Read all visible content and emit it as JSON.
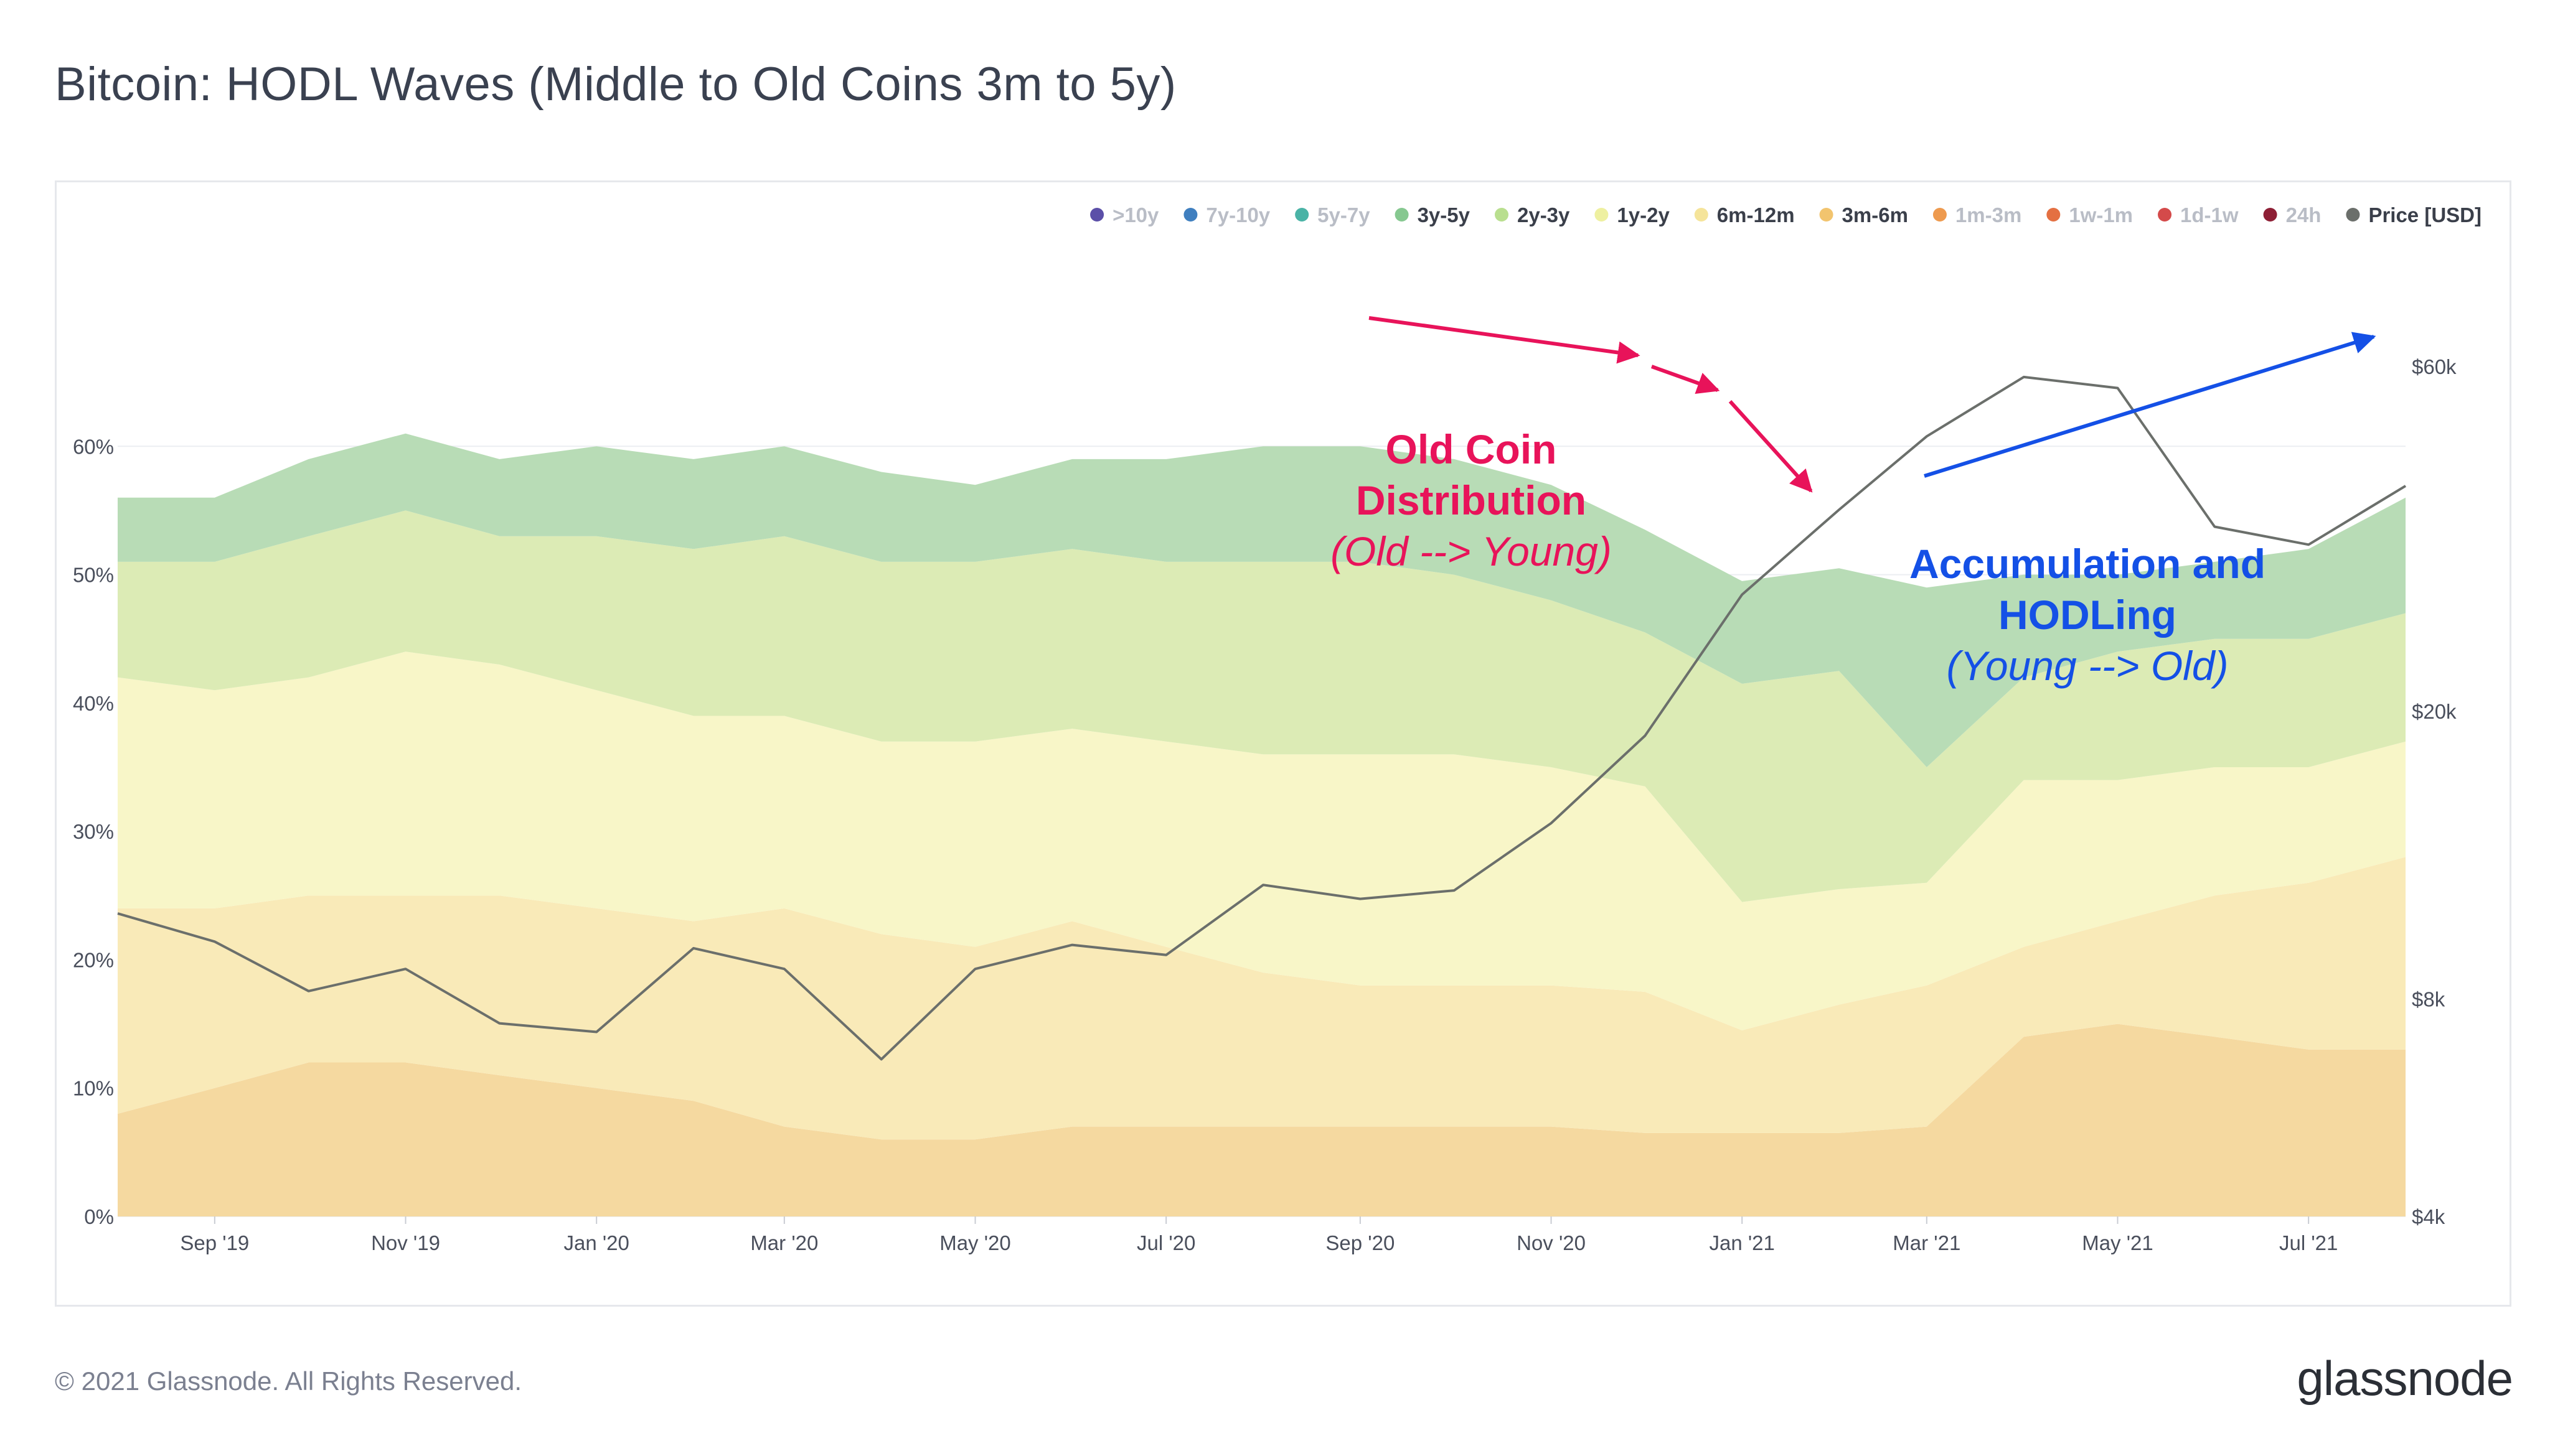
{
  "title": "Bitcoin: HODL Waves (Middle to Old Coins 3m to 5y)",
  "footer": "© 2021 Glassnode. All Rights Reserved.",
  "brand": "glassnode",
  "watermark": "glassnode",
  "chart_data": {
    "type": "area",
    "stacked": true,
    "x": [
      "2019-08-01",
      "2019-09-01",
      "2019-10-01",
      "2019-11-01",
      "2019-12-01",
      "2020-01-01",
      "2020-02-01",
      "2020-03-01",
      "2020-04-01",
      "2020-05-01",
      "2020-06-01",
      "2020-07-01",
      "2020-08-01",
      "2020-09-01",
      "2020-10-01",
      "2020-11-01",
      "2020-12-01",
      "2021-01-01",
      "2021-02-01",
      "2021-03-01",
      "2021-04-01",
      "2021-05-01",
      "2021-06-01",
      "2021-07-01",
      "2021-08-01"
    ],
    "x_ticks": [
      "Sep '19",
      "Nov '19",
      "Jan '20",
      "Mar '20",
      "May '20",
      "Jul '20",
      "Sep '20",
      "Nov '20",
      "Jan '21",
      "Mar '21",
      "May '21",
      "Jul '21"
    ],
    "y_left_ticks": [
      "0%",
      "10%",
      "20%",
      "30%",
      "40%",
      "50%",
      "60%"
    ],
    "ylim_left": [
      0,
      70
    ],
    "y_right_ticks": [
      "$4k",
      "$8k",
      "$20k",
      "$60k"
    ],
    "y_right_scale": "log",
    "ylim_right": [
      4000,
      70000
    ],
    "series": [
      {
        "name": "3m-6m",
        "color": "#f5d9a0",
        "values": [
          8,
          10,
          12,
          12,
          11,
          10,
          9,
          7,
          6,
          6,
          7,
          7,
          7,
          7,
          7,
          7,
          6.5,
          6.5,
          6.5,
          7,
          14,
          15,
          14,
          13,
          13
        ]
      },
      {
        "name": "6m-12m",
        "color": "#f9eab8",
        "values": [
          16,
          14,
          13,
          13,
          14,
          14,
          14,
          17,
          16,
          15,
          16,
          14,
          12,
          11,
          11,
          11,
          11,
          8,
          10,
          11,
          7,
          8,
          11,
          13,
          15
        ]
      },
      {
        "name": "1y-2y",
        "color": "#f8f6c8",
        "values": [
          18,
          17,
          17,
          19,
          18,
          17,
          16,
          15,
          15,
          16,
          15,
          16,
          17,
          18,
          18,
          17,
          16,
          10,
          9,
          8,
          13,
          11,
          10,
          9,
          9
        ]
      },
      {
        "name": "2y-3y",
        "color": "#dcebb5",
        "values": [
          9,
          10,
          11,
          11,
          10,
          12,
          13,
          14,
          14,
          14,
          14,
          14,
          15,
          15,
          14,
          13,
          12,
          17,
          17,
          9,
          8,
          10,
          10,
          10,
          10
        ]
      },
      {
        "name": "3y-5y",
        "color": "#b8dcb6",
        "values": [
          5,
          5,
          6,
          6,
          6,
          7,
          7,
          7,
          7,
          6,
          7,
          8,
          9,
          9,
          9,
          9,
          8,
          8,
          8,
          14,
          8,
          6,
          6,
          7,
          9
        ]
      }
    ],
    "price": {
      "name": "Price [USD]",
      "color": "#6b6f6b",
      "values": [
        10500,
        9600,
        8200,
        8800,
        7400,
        7200,
        9400,
        8800,
        6600,
        8800,
        9500,
        9200,
        11500,
        11000,
        11300,
        14000,
        18500,
        29000,
        38000,
        48000,
        58000,
        56000,
        36000,
        34000,
        41000
      ]
    },
    "legend": [
      {
        "label": ">10y",
        "color": "#5b4fa8",
        "active": false
      },
      {
        "label": "7y-10y",
        "color": "#3f7fbf",
        "active": false
      },
      {
        "label": "5y-7y",
        "color": "#4ab3a6",
        "active": false
      },
      {
        "label": "3y-5y",
        "color": "#86c890",
        "active": true
      },
      {
        "label": "2y-3y",
        "color": "#b9df8f",
        "active": true
      },
      {
        "label": "1y-2y",
        "color": "#eef0a0",
        "active": true
      },
      {
        "label": "6m-12m",
        "color": "#f5e49a",
        "active": true
      },
      {
        "label": "3m-6m",
        "color": "#f2c46e",
        "active": true
      },
      {
        "label": "1m-3m",
        "color": "#ee9a4e",
        "active": false
      },
      {
        "label": "1w-1m",
        "color": "#e47042",
        "active": false
      },
      {
        "label": "1d-1w",
        "color": "#d44a4a",
        "active": false
      },
      {
        "label": "24h",
        "color": "#8e1f35",
        "active": false
      },
      {
        "label": "Price [USD]",
        "color": "#6b6f6b",
        "active": true
      }
    ],
    "legend_position": "top-right",
    "annotations": [
      {
        "lines": [
          "Old Coin",
          "Distribution"
        ],
        "subtitle": "(Old --> Young)",
        "color": "#e8135a"
      },
      {
        "lines": [
          "Accumulation and",
          "HODLing"
        ],
        "subtitle": "(Young --> Old)",
        "color": "#1450e6"
      }
    ]
  }
}
